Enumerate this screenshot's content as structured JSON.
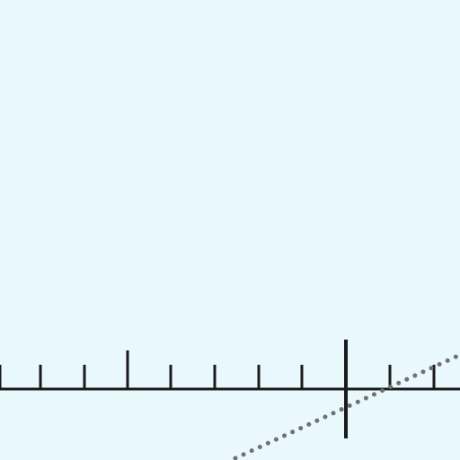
{
  "colors": {
    "background": "#e8f8fc",
    "axis": "#1a1a1a",
    "dotted_line": "#707070"
  },
  "number_line": {
    "tick_count": 11,
    "major_tick_count": 1,
    "origin_marker_count": 1
  },
  "dotted_line": {
    "style": "dotted"
  }
}
